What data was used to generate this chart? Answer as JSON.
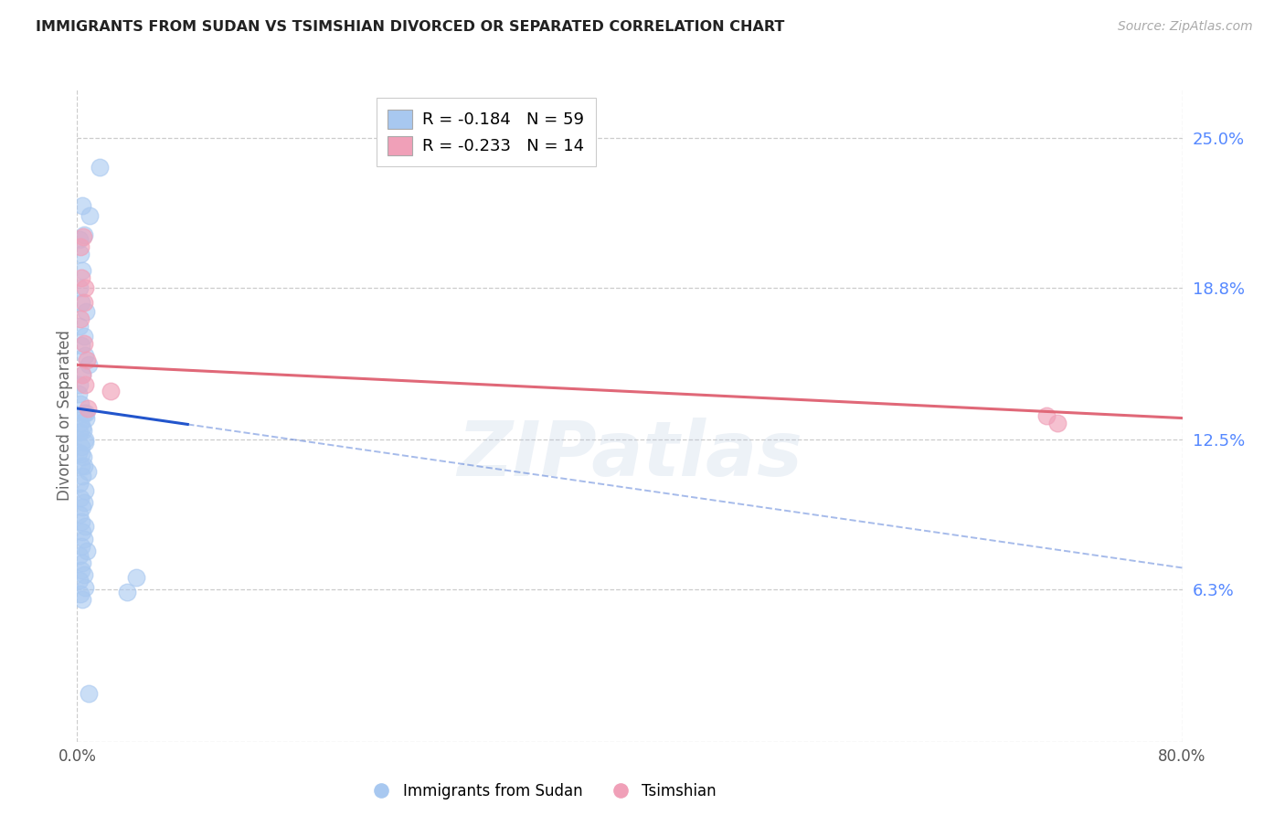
{
  "title": "IMMIGRANTS FROM SUDAN VS TSIMSHIAN DIVORCED OR SEPARATED CORRELATION CHART",
  "source": "Source: ZipAtlas.com",
  "ylabel": "Divorced or Separated",
  "ytick_values": [
    0.0,
    6.3,
    12.5,
    18.8,
    25.0
  ],
  "xlim": [
    0,
    80
  ],
  "ylim": [
    0,
    27
  ],
  "legend_blue_r": "R = -0.184",
  "legend_blue_n": "N = 59",
  "legend_pink_r": "R = -0.233",
  "legend_pink_n": "N = 14",
  "blue_label": "Immigrants from Sudan",
  "pink_label": "Tsimshian",
  "watermark_text": "ZIPatlas",
  "blue_color": "#A8C8F0",
  "pink_color": "#F0A0B8",
  "blue_line_color": "#2255CC",
  "pink_line_color": "#E06878",
  "blue_scatter_x": [
    0.35,
    0.9,
    1.6,
    0.15,
    0.5,
    0.25,
    0.4,
    0.2,
    0.3,
    0.65,
    0.18,
    0.5,
    0.28,
    0.6,
    0.85,
    0.38,
    0.2,
    0.1,
    0.25,
    0.48,
    0.62,
    0.4,
    0.16,
    0.55,
    0.3,
    0.09,
    0.45,
    0.3,
    0.78,
    0.4,
    0.2,
    0.58,
    0.26,
    0.48,
    0.38,
    0.18,
    0.3,
    0.6,
    0.36,
    0.5,
    0.28,
    0.68,
    0.16,
    0.4,
    0.28,
    0.5,
    0.18,
    0.6,
    0.26,
    0.4,
    3.6,
    4.3,
    0.82,
    0.52,
    0.3,
    0.6,
    0.42,
    0.22,
    0.62
  ],
  "blue_scatter_y": [
    22.2,
    21.8,
    23.8,
    20.8,
    21.0,
    20.2,
    19.5,
    18.8,
    18.2,
    17.8,
    17.2,
    16.8,
    16.4,
    16.0,
    15.6,
    15.2,
    14.8,
    14.4,
    14.0,
    13.6,
    13.4,
    13.0,
    12.8,
    12.5,
    12.2,
    12.0,
    11.8,
    11.4,
    11.2,
    11.0,
    10.7,
    10.4,
    10.1,
    9.9,
    9.7,
    9.4,
    9.1,
    8.9,
    8.7,
    8.4,
    8.1,
    7.9,
    7.7,
    7.4,
    7.1,
    6.9,
    6.7,
    6.4,
    6.1,
    5.9,
    6.2,
    6.8,
    2.0,
    11.4,
    11.9,
    12.4,
    12.9,
    13.2,
    13.6
  ],
  "pink_scatter_x": [
    0.22,
    0.42,
    0.32,
    0.55,
    0.48,
    0.25,
    0.5,
    0.68,
    0.4,
    2.4,
    0.78,
    70.2,
    71.0,
    0.6
  ],
  "pink_scatter_y": [
    20.5,
    20.9,
    19.2,
    18.8,
    18.2,
    17.5,
    16.5,
    15.8,
    15.2,
    14.5,
    13.8,
    13.5,
    13.2,
    14.8
  ],
  "blue_line_x0": 0.0,
  "blue_line_x1": 80.0,
  "blue_line_y0": 13.8,
  "blue_line_y1": 7.2,
  "blue_line_solid_end_x": 8.0,
  "pink_line_x0": 0.0,
  "pink_line_x1": 80.0,
  "pink_line_y0": 15.6,
  "pink_line_y1": 13.4
}
